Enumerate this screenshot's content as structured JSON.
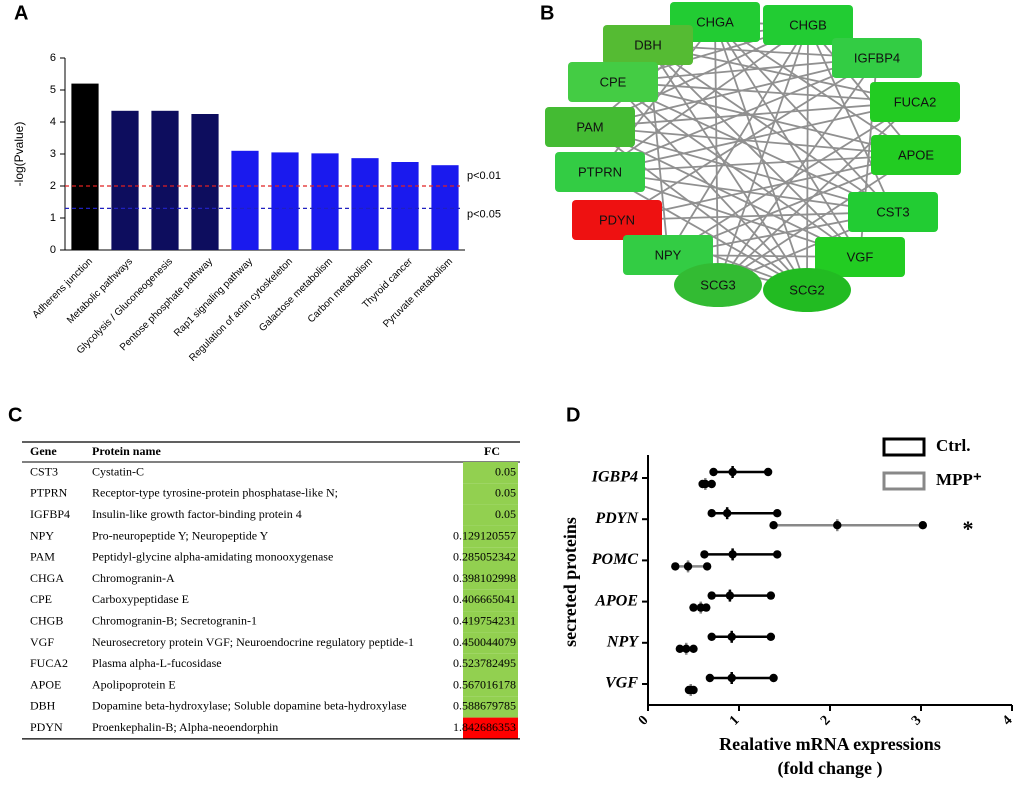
{
  "panel_labels": [
    "A",
    "B",
    "C",
    "D"
  ],
  "chart_data": [
    {
      "type": "bar",
      "ylabel": "-log(Pvalue)",
      "categories": [
        "Adherens junction",
        "Metabolic pathways",
        "Glycolysis / Gluconeogenesis",
        "Pentose phosphate pathway",
        "Rap1 signaling pathway",
        "Regulation of actin cytoskeleton",
        "Galactose metabolism",
        "Carbon metabolism",
        "Thyroid cancer",
        "Pyruvate metabolism"
      ],
      "values": [
        5.2,
        4.35,
        4.35,
        4.25,
        3.1,
        3.05,
        3.02,
        2.87,
        2.75,
        2.65
      ],
      "colors": [
        "#000000",
        "#0d0d5e",
        "#0d0d5e",
        "#0d0d5e",
        "#1a1aee",
        "#1a1aee",
        "#1a1aee",
        "#1a1aee",
        "#1a1aee",
        "#1a1aee"
      ],
      "ylim": [
        0,
        6
      ],
      "yticks": [
        0,
        1,
        2,
        3,
        4,
        5,
        6
      ],
      "reference_lines": [
        {
          "value": 2,
          "label": "p<0.01",
          "color": "#e02020"
        },
        {
          "value": 1.3,
          "label": "p<0.05",
          "color": "#2020c0"
        }
      ]
    },
    {
      "type": "dotplot",
      "ylabel": "secreted proteins",
      "xlabel": [
        "Realative mRNA expressions",
        "(fold change )"
      ],
      "categories": [
        "IGBP4",
        "PDYN",
        "POMC",
        "APOE",
        "NPY",
        "VGF"
      ],
      "series": [
        {
          "name": "Ctrl.",
          "color": "#000000",
          "values": [
            [
              0.72,
              0.93,
              1.32
            ],
            [
              0.7,
              0.87,
              1.42
            ],
            [
              0.62,
              0.93,
              1.42
            ],
            [
              0.7,
              0.9,
              1.35
            ],
            [
              0.7,
              0.92,
              1.35
            ],
            [
              0.68,
              0.92,
              1.38
            ]
          ],
          "means": [
            0.93,
            0.87,
            0.93,
            0.9,
            0.92,
            0.92
          ]
        },
        {
          "name": "MPP⁺",
          "color": "#888888",
          "values": [
            [
              0.6,
              0.63,
              0.7
            ],
            [
              1.38,
              2.08,
              3.02
            ],
            [
              0.3,
              0.44,
              0.65
            ],
            [
              0.5,
              0.58,
              0.64
            ],
            [
              0.35,
              0.42,
              0.5
            ],
            [
              0.45,
              0.47,
              0.5
            ]
          ],
          "means": [
            0.63,
            2.08,
            0.44,
            0.58,
            0.42,
            0.47
          ]
        }
      ],
      "annotations": [
        {
          "category": "PDYN",
          "text": "*"
        }
      ],
      "xlim": [
        0,
        4
      ],
      "xticks": [
        0,
        1,
        2,
        3,
        4
      ]
    }
  ],
  "network": {
    "nodes": [
      {
        "label": "CHGA",
        "color": "#22cc33",
        "shape": "rect"
      },
      {
        "label": "CHGB",
        "color": "#22cc33",
        "shape": "rect"
      },
      {
        "label": "DBH",
        "color": "#55bb33",
        "shape": "rect"
      },
      {
        "label": "IGFBP4",
        "color": "#33cc44",
        "shape": "rect"
      },
      {
        "label": "CPE",
        "color": "#44cc44",
        "shape": "rect"
      },
      {
        "label": "FUCA2",
        "color": "#22cc22",
        "shape": "rect"
      },
      {
        "label": "PAM",
        "color": "#44bb33",
        "shape": "rect"
      },
      {
        "label": "APOE",
        "color": "#22cc22",
        "shape": "rect"
      },
      {
        "label": "PTPRN",
        "color": "#33cc44",
        "shape": "rect"
      },
      {
        "label": "CST3",
        "color": "#22cc33",
        "shape": "rect"
      },
      {
        "label": "PDYN",
        "color": "#ee1111",
        "shape": "rect"
      },
      {
        "label": "VGF",
        "color": "#22cc22",
        "shape": "rect"
      },
      {
        "label": "NPY",
        "color": "#33cc44",
        "shape": "rect"
      },
      {
        "label": "SCG3",
        "color": "#33bb33",
        "shape": "ellipse"
      },
      {
        "label": "SCG2",
        "color": "#22bb22",
        "shape": "ellipse"
      }
    ]
  },
  "table": {
    "header": [
      "Gene",
      "Protein name",
      "FC"
    ],
    "rows": [
      {
        "gene": "CST3",
        "protein": "Cystatin-C",
        "fc": "0.05",
        "color": "#92d050"
      },
      {
        "gene": "PTPRN",
        "protein": "Receptor-type tyrosine-protein phosphatase-like N;",
        "fc": "0.05",
        "color": "#92d050"
      },
      {
        "gene": "IGFBP4",
        "protein": "Insulin-like growth factor-binding protein 4",
        "fc": "0.05",
        "color": "#92d050"
      },
      {
        "gene": "NPY",
        "protein": "Pro-neuropeptide Y; Neuropeptide Y",
        "fc": "0.129120557",
        "color": "#92d050"
      },
      {
        "gene": "PAM",
        "protein": "Peptidyl-glycine alpha-amidating monooxygenase",
        "fc": "0.285052342",
        "color": "#92d050"
      },
      {
        "gene": "CHGA",
        "protein": "Chromogranin-A",
        "fc": "0.398102998",
        "color": "#92d050"
      },
      {
        "gene": "CPE",
        "protein": "Carboxypeptidase E",
        "fc": "0.406665041",
        "color": "#92d050"
      },
      {
        "gene": "CHGB",
        "protein": "Chromogranin-B; Secretogranin-1",
        "fc": "0.419754231",
        "color": "#92d050"
      },
      {
        "gene": "VGF",
        "protein": "Neurosecretory protein VGF; Neuroendocrine regulatory peptide-1",
        "fc": "0.450044079",
        "color": "#92d050"
      },
      {
        "gene": "FUCA2",
        "protein": "Plasma alpha-L-fucosidase",
        "fc": "0.523782495",
        "color": "#92d050"
      },
      {
        "gene": "APOE",
        "protein": "Apolipoprotein E",
        "fc": "0.567016178",
        "color": "#92d050"
      },
      {
        "gene": "DBH",
        "protein": "Dopamine beta-hydroxylase; Soluble dopamine beta-hydroxylase",
        "fc": "0.588679785",
        "color": "#92d050"
      },
      {
        "gene": "PDYN",
        "protein": "Proenkephalin-B; Alpha-neoendorphin",
        "fc": "1.842686353",
        "color": "#ff0000"
      }
    ]
  }
}
